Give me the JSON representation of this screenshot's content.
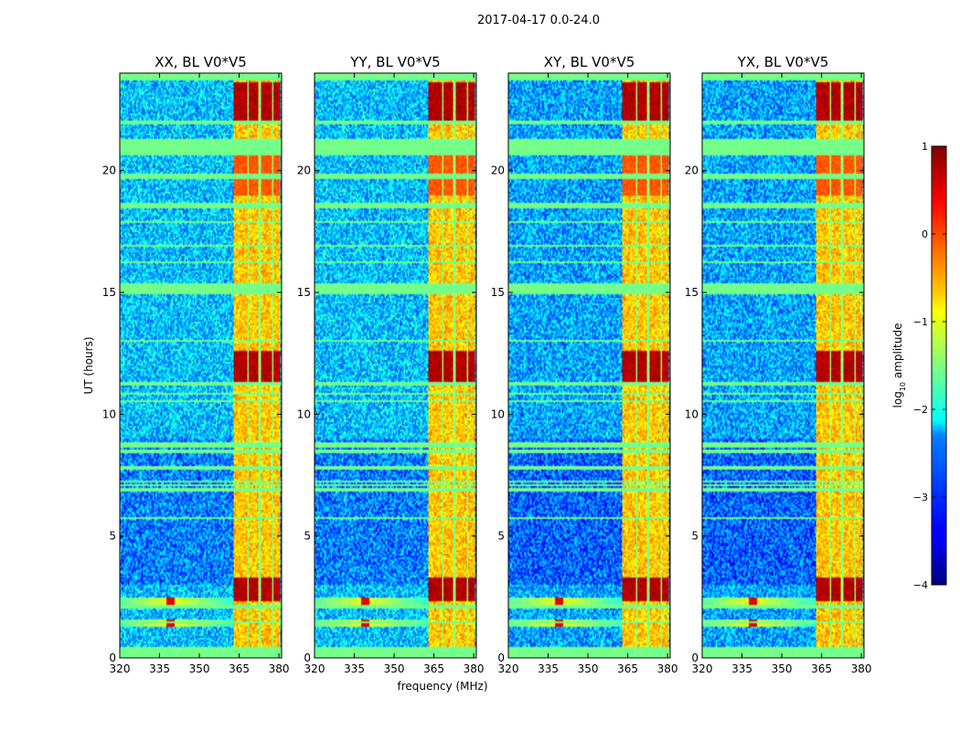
{
  "figure": {
    "suptitle": "2017-04-17 0.0-24.0",
    "xlabel": "frequency (MHz)",
    "ylabel": "UT (hours)",
    "colorbar_label_main": "log",
    "colorbar_label_sub": "10",
    "colorbar_label_tail": " amplitude"
  },
  "colors": {
    "background": "#ffffff",
    "spine": "#000000",
    "jet_low": "#00007f",
    "jet_high": "#7f0000"
  },
  "chart_data": [
    {
      "type": "heatmap",
      "title": "XX, BL V0*V5",
      "polarization": "XX",
      "xlim": [
        320,
        381
      ],
      "ylim": [
        0,
        24
      ],
      "xticks": [
        320,
        335,
        350,
        365,
        380
      ],
      "xtick_labels": [
        "320",
        "335",
        "350",
        "365",
        "380"
      ],
      "yticks": [
        0,
        5,
        10,
        15,
        20
      ],
      "ytick_labels": [
        "0",
        "5",
        "10",
        "15",
        "20"
      ],
      "color_range": [
        -4,
        1
      ]
    },
    {
      "type": "heatmap",
      "title": "YY, BL V0*V5",
      "polarization": "YY",
      "xlim": [
        320,
        381
      ],
      "ylim": [
        0,
        24
      ],
      "xticks": [
        320,
        335,
        350,
        365,
        380
      ],
      "xtick_labels": [
        "320",
        "335",
        "350",
        "365",
        "380"
      ],
      "yticks": [
        0,
        5,
        10,
        15,
        20
      ],
      "ytick_labels": [
        "0",
        "5",
        "10",
        "15",
        "20"
      ],
      "color_range": [
        -4,
        1
      ]
    },
    {
      "type": "heatmap",
      "title": "XY, BL V0*V5",
      "polarization": "XY",
      "xlim": [
        320,
        381
      ],
      "ylim": [
        0,
        24
      ],
      "xticks": [
        320,
        335,
        350,
        365,
        380
      ],
      "xtick_labels": [
        "320",
        "335",
        "350",
        "365",
        "380"
      ],
      "yticks": [
        0,
        5,
        10,
        15,
        20
      ],
      "ytick_labels": [
        "0",
        "5",
        "10",
        "15",
        "20"
      ],
      "color_range": [
        -4,
        1
      ]
    },
    {
      "type": "heatmap",
      "title": "YX, BL V0*V5",
      "polarization": "YX",
      "xlim": [
        320,
        381
      ],
      "ylim": [
        0,
        24
      ],
      "xticks": [
        320,
        335,
        350,
        365,
        380
      ],
      "xtick_labels": [
        "320",
        "335",
        "350",
        "365",
        "380"
      ],
      "yticks": [
        0,
        5,
        10,
        15,
        20
      ],
      "ytick_labels": [
        "0",
        "5",
        "10",
        "15",
        "20"
      ],
      "color_range": [
        -4,
        1
      ]
    }
  ],
  "colorbar": {
    "colormap": "jet",
    "range": [
      -4,
      1
    ],
    "ticks": [
      1,
      0,
      -1,
      -2,
      -3,
      -4
    ],
    "tick_labels": [
      "1",
      "0",
      "−1",
      "−2",
      "−3",
      "−4"
    ]
  },
  "features": {
    "rfi_band_mhz": [
      363,
      380
    ],
    "rfi_subbands_mhz": [
      [
        363,
        368
      ],
      [
        368.5,
        372
      ],
      [
        373.5,
        377.5
      ],
      [
        378,
        380.5
      ]
    ],
    "flagged_time_bands_hours": [
      [
        0,
        0.45
      ],
      [
        2.05,
        2.15
      ],
      [
        6.85,
        6.95
      ],
      [
        8.65,
        8.85
      ],
      [
        11.15,
        11.3
      ],
      [
        14.9,
        15.4
      ],
      [
        18.45,
        18.7
      ],
      [
        19.7,
        19.85
      ],
      [
        20.65,
        21.3
      ],
      [
        21.9,
        22.05
      ],
      [
        23.7,
        24
      ]
    ],
    "broadband_events_hours": [
      [
        1.3,
        1.6
      ],
      [
        2.2,
        2.5
      ]
    ],
    "burst_freq_mhz": 339
  }
}
